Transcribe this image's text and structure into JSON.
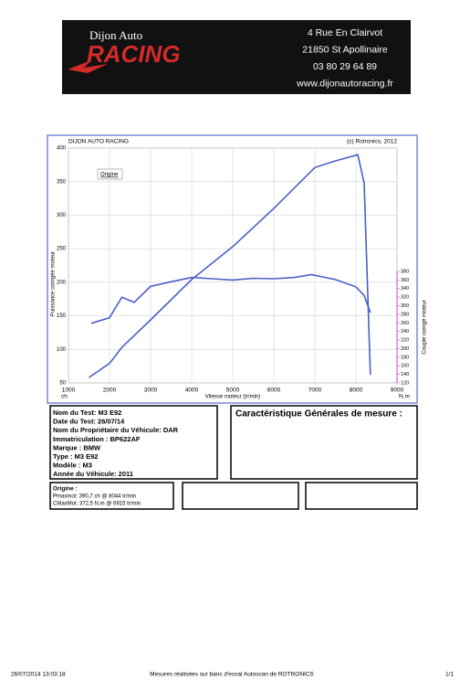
{
  "header": {
    "logo_top": "Dijon Auto",
    "logo_main": "RACING",
    "address": [
      "4 Rue En Clairvot",
      "21850 St Apollinaire",
      "03 80 29 64 89",
      "www.dijonautoracing.fr"
    ]
  },
  "chart_data": {
    "type": "line",
    "title": "DIJON AUTO RACING",
    "copyright": "(c) Rotronics, 2012",
    "legend": "Origine",
    "x_label": "Vitesse moteur (tr/min)",
    "y_label": "Puissance corrigée moteur",
    "y2_label": "Couple corrigé moteur",
    "y_unit": "ch",
    "y2_unit": "N.m",
    "xlim": [
      1000,
      9000
    ],
    "xticks": [
      1000,
      2000,
      3000,
      4000,
      5000,
      6000,
      7000,
      8000,
      9000
    ],
    "ylim": [
      50,
      400
    ],
    "yticks": [
      50,
      100,
      150,
      200,
      250,
      300,
      350,
      400
    ],
    "y2lim": [
      120,
      380
    ],
    "y2ticks": [
      120,
      140,
      160,
      180,
      200,
      220,
      240,
      260,
      280,
      300,
      320,
      340,
      360,
      380
    ],
    "grid": true,
    "series": [
      {
        "color": "#4a5fc8",
        "x": [
          1500,
          2000,
          2300,
          3000,
          4000,
          5000,
          6000,
          7000,
          7500,
          8044,
          8200,
          8350
        ],
        "values": [
          58,
          79,
          103,
          144,
          204,
          253,
          310,
          371,
          381,
          390,
          348,
          62
        ]
      },
      {
        "color": "#4a5fc8",
        "axis": "y2",
        "x": [
          1550,
          2000,
          2300,
          2600,
          3000,
          3500,
          4000,
          4500,
          5000,
          5500,
          6000,
          6500,
          6915,
          7500,
          8000,
          8200,
          8350
        ],
        "values": [
          259,
          272,
          320,
          308,
          345,
          356,
          366,
          363,
          360,
          364,
          363,
          366,
          372.5,
          361,
          344,
          324,
          284
        ]
      }
    ]
  },
  "info": {
    "lines": [
      "Nom du Test: M3 E92",
      "Date du Test: 26/07/14",
      "Nom du Propriétaire du Véhicule: DAR",
      "Immatriculation  : BP622AF",
      "Marque  : BMW",
      "Type  : M3 E92",
      "Modèle  : M3",
      "Année du Véhicule: 2011"
    ],
    "general_title": "Caractéristique Générales de mesure :",
    "origine_title": "Origine :",
    "origine_lines": [
      "Pmaxmot: 390,7 ch @ 8044 tr/min",
      "CMaxMot: 372,5 N.m @ 6915 tr/min"
    ]
  },
  "footer": {
    "date": "26/07/2014 13:03:18",
    "note": "Mesures réalisées sur banc d'essai Autoscan de ROTRONICS",
    "page": "1/1"
  }
}
